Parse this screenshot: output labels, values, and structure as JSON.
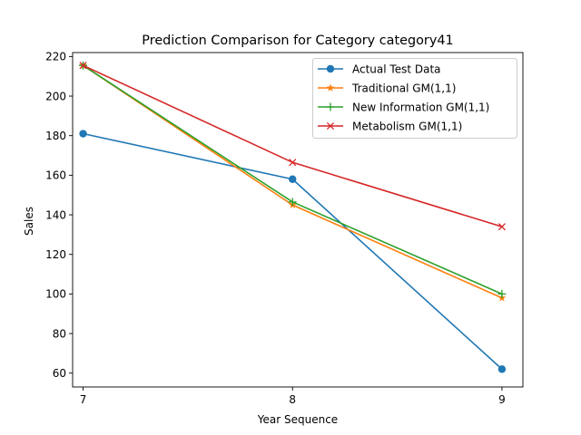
{
  "chart_data": {
    "type": "line",
    "title": "Prediction Comparison for Category category41",
    "xlabel": "Year Sequence",
    "ylabel": "Sales",
    "x": [
      7,
      8,
      9
    ],
    "xlim": [
      6.95,
      9.1
    ],
    "ylim": [
      53,
      222
    ],
    "xticks": [
      7,
      8,
      9
    ],
    "yticks": [
      60,
      80,
      100,
      120,
      140,
      160,
      180,
      200,
      220
    ],
    "grid": false,
    "legend_position": "top-right",
    "series": [
      {
        "name": "Actual Test Data",
        "values": [
          181,
          158,
          62
        ],
        "color": "#1f77b4",
        "marker": "circle"
      },
      {
        "name": "Traditional GM(1,1)",
        "values": [
          215.5,
          145,
          98
        ],
        "color": "#ff7f0e",
        "marker": "star"
      },
      {
        "name": "New Information GM(1,1)",
        "values": [
          215.5,
          146.5,
          100
        ],
        "color": "#2ca02c",
        "marker": "plus"
      },
      {
        "name": "Metabolism GM(1,1)",
        "values": [
          215.5,
          166.5,
          134
        ],
        "color": "#d62728",
        "marker": "x"
      }
    ]
  }
}
